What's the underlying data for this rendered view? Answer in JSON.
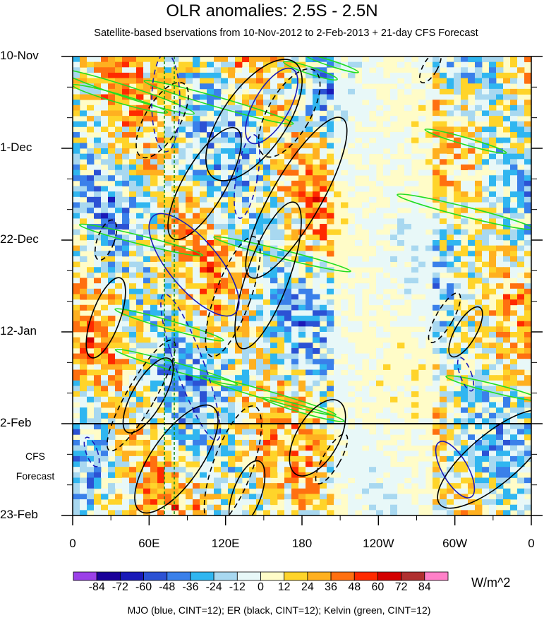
{
  "chart_data": {
    "type": "heatmap",
    "title": "OLR anomalies: 2.5S - 2.5N",
    "subtitle": "Satellite-based bservations from 10-Nov-2012 to 2-Feb-2013 + 21-day CFS Forecast",
    "y_ticks": [
      "10-Nov",
      "1-Dec",
      "22-Dec",
      "12-Jan",
      "2-Feb",
      "23-Feb"
    ],
    "x_ticks": [
      "0",
      "60E",
      "120E",
      "180",
      "120W",
      "60W",
      "0"
    ],
    "forecast_label_line1": "CFS",
    "forecast_label_line2": "Forecast",
    "forecast_start": "2-Feb",
    "units": "W/m^2",
    "colorbar_levels": [
      "-84",
      "-72",
      "-60",
      "-48",
      "-36",
      "-24",
      "-12",
      "0",
      "12",
      "24",
      "36",
      "48",
      "60",
      "72",
      "84"
    ],
    "colorbar_colors": [
      "#9b40e8",
      "#1a0099",
      "#1a1ab8",
      "#2c52d4",
      "#3a80ea",
      "#30b6f0",
      "#a8d8f0",
      "#e8f8f8",
      "#fffcc8",
      "#ffd42a",
      "#ffb020",
      "#ff7010",
      "#ff2a00",
      "#d40000",
      "#b03030",
      "#ff80c8"
    ],
    "footnote": "MJO (blue, CINT=12); ER (black, CINT=12); Kelvin (green, CINT=12)",
    "contour_colors": {
      "MJO": "#1a1ab8",
      "ER": "#000000",
      "Kelvin": "#22dd22"
    }
  }
}
